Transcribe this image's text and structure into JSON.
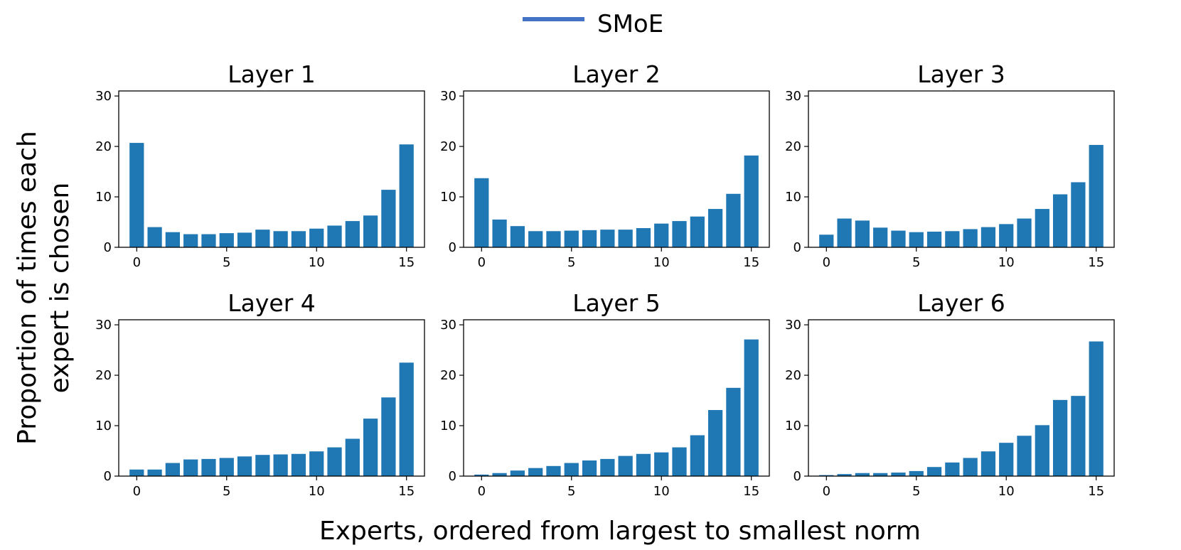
{
  "chart_data": {
    "type": "bar",
    "legend": {
      "label": "SMoE",
      "color": "#4472C4",
      "placement": "top-center"
    },
    "bar_color": "#1f77b4",
    "xlabel": "Experts, ordered from largest to smallest norm",
    "ylabel_lines": [
      "Proportion of times each",
      "expert is chosen"
    ],
    "ylim": [
      0,
      31
    ],
    "yticks": [
      0,
      10,
      20,
      30
    ],
    "xlim": [
      -1,
      16
    ],
    "xticks": [
      0,
      5,
      10,
      15
    ],
    "categories": [
      0,
      1,
      2,
      3,
      4,
      5,
      6,
      7,
      8,
      9,
      10,
      11,
      12,
      13,
      14,
      15
    ],
    "panels": [
      {
        "title": "Layer 1",
        "values": [
          20.7,
          4.0,
          3.0,
          2.6,
          2.6,
          2.8,
          2.9,
          3.5,
          3.2,
          3.2,
          3.7,
          4.3,
          5.2,
          6.3,
          11.4,
          20.4
        ]
      },
      {
        "title": "Layer 2",
        "values": [
          13.7,
          5.5,
          4.2,
          3.2,
          3.2,
          3.3,
          3.4,
          3.5,
          3.5,
          3.8,
          4.7,
          5.2,
          6.1,
          7.6,
          10.6,
          18.2
        ]
      },
      {
        "title": "Layer 3",
        "values": [
          2.5,
          5.7,
          5.3,
          3.9,
          3.3,
          3.0,
          3.1,
          3.2,
          3.6,
          4.0,
          4.6,
          5.7,
          7.6,
          10.5,
          12.9,
          20.3
        ]
      },
      {
        "title": "Layer 4",
        "values": [
          1.3,
          1.3,
          2.6,
          3.3,
          3.4,
          3.6,
          3.9,
          4.2,
          4.3,
          4.4,
          4.9,
          5.7,
          7.4,
          11.4,
          15.6,
          22.5
        ]
      },
      {
        "title": "Layer 5",
        "values": [
          0.3,
          0.6,
          1.1,
          1.6,
          2.0,
          2.6,
          3.1,
          3.4,
          4.0,
          4.4,
          4.7,
          5.7,
          8.1,
          13.1,
          17.5,
          27.1
        ]
      },
      {
        "title": "Layer 6",
        "values": [
          0.2,
          0.4,
          0.6,
          0.6,
          0.7,
          1.0,
          1.8,
          2.7,
          3.6,
          4.9,
          6.6,
          8.0,
          10.1,
          15.1,
          15.9,
          26.7
        ]
      }
    ]
  }
}
